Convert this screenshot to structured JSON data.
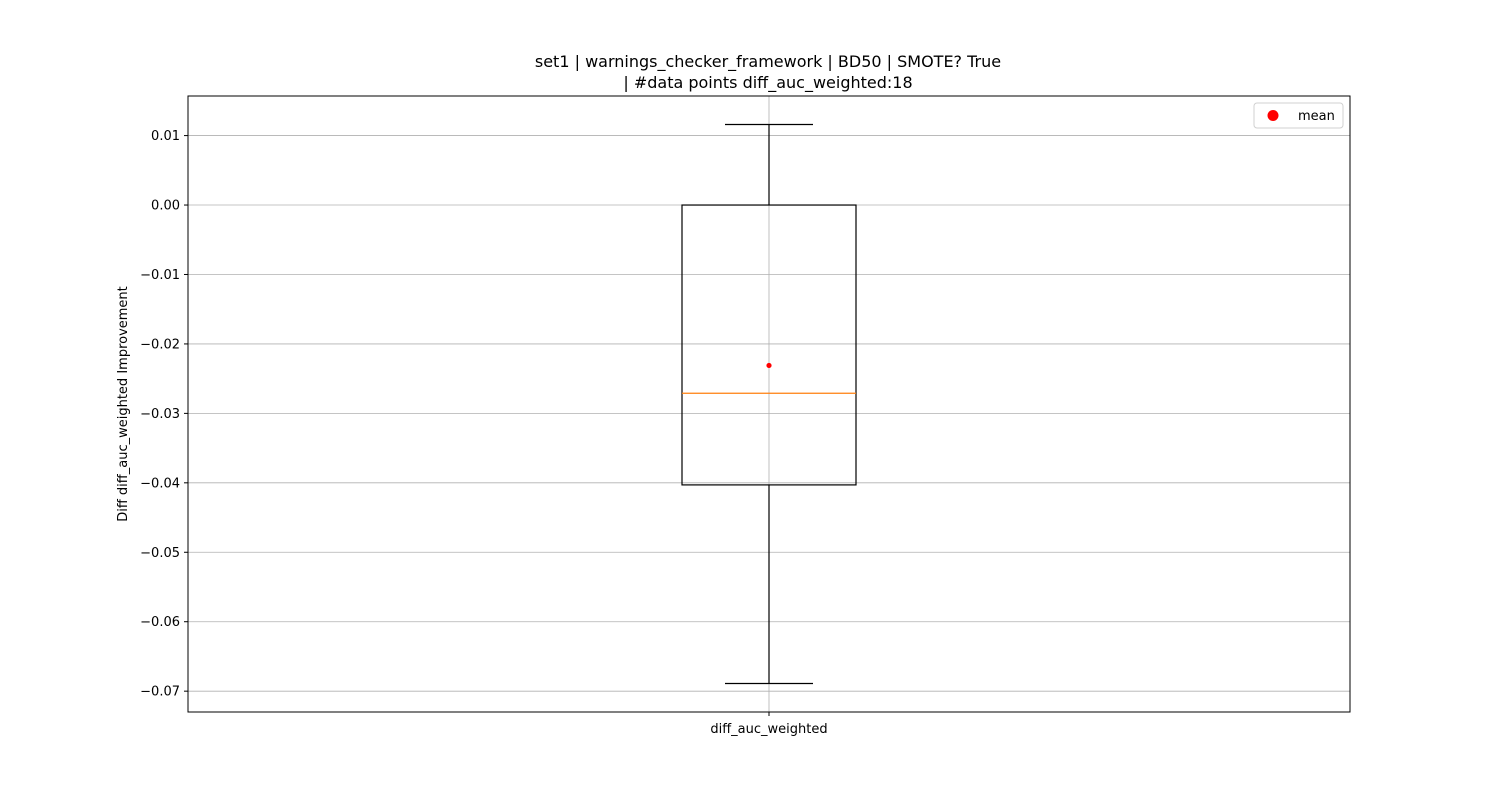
{
  "chart_data": {
    "type": "box",
    "title_line1": "set1 | warnings_checker_framework | BD50 | SMOTE? True",
    "title_line2": "| #data points diff_auc_weighted:18",
    "xlabel": "",
    "ylabel": "Diff diff_auc_weighted Improvement",
    "categories": [
      "diff_auc_weighted"
    ],
    "ylim": [
      -0.073,
      0.0157
    ],
    "y_ticks": [
      0.01,
      0.0,
      -0.01,
      -0.02,
      -0.03,
      -0.04,
      -0.05,
      -0.06,
      -0.07
    ],
    "y_tick_labels": [
      "0.01",
      "0.00",
      "−0.01",
      "−0.02",
      "−0.03",
      "−0.04",
      "−0.05",
      "−0.06",
      "−0.07"
    ],
    "grid": true,
    "legend": {
      "placement": "top-right",
      "entries": [
        {
          "label": "mean",
          "color": "#ff0000",
          "marker": "circle"
        }
      ]
    },
    "box": {
      "whisker_low": -0.0689,
      "q1": -0.0403,
      "median": -0.0271,
      "q3": 0.0,
      "whisker_high": 0.0116,
      "mean": -0.0231
    },
    "colors": {
      "median": "#ff7f0e",
      "mean": "#ff0000",
      "box": "#000000",
      "grid": "#b0b0b0"
    }
  }
}
